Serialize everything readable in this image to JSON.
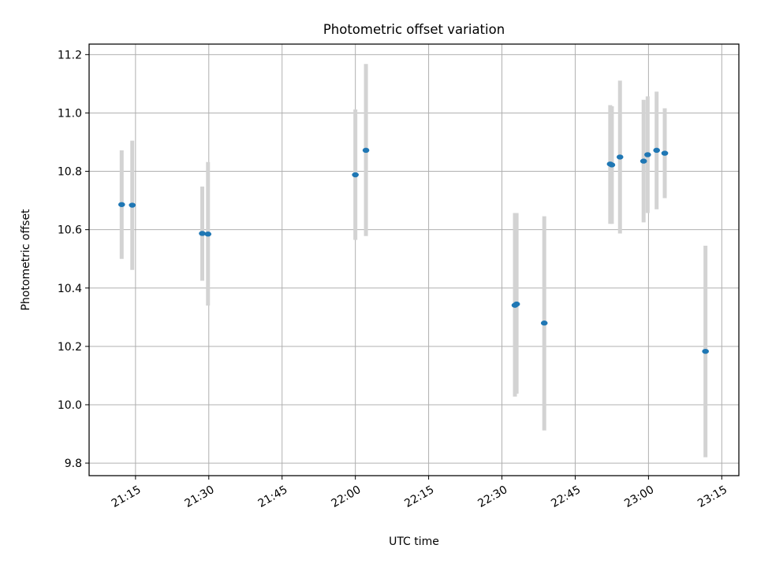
{
  "chart_data": {
    "type": "scatter",
    "title": "Photometric offset variation",
    "xlabel": "UTC time",
    "ylabel": "Photometric offset",
    "xlim": [
      "21:05:30",
      "23:18:30"
    ],
    "ylim": [
      9.757,
      11.236
    ],
    "x_ticks": [
      "21:15",
      "21:30",
      "21:45",
      "22:00",
      "22:15",
      "22:30",
      "22:45",
      "23:00",
      "23:15"
    ],
    "y_ticks": [
      "9.8",
      "10.0",
      "10.2",
      "10.4",
      "10.6",
      "10.8",
      "11.0",
      "11.2"
    ],
    "grid": true,
    "colors": {
      "point": "#1f77b4",
      "errorbar": "#d3d3d3",
      "grid": "#b0b0b0"
    },
    "series": [
      {
        "points": [
          {
            "x": "21:12:10",
            "y": 10.686,
            "ylow": 10.5,
            "yhigh": 10.872
          },
          {
            "x": "21:14:20",
            "y": 10.684,
            "ylow": 10.462,
            "yhigh": 10.905
          },
          {
            "x": "21:28:40",
            "y": 10.587,
            "ylow": 10.425,
            "yhigh": 10.748
          },
          {
            "x": "21:29:50",
            "y": 10.585,
            "ylow": 10.34,
            "yhigh": 10.832
          },
          {
            "x": "22:00:00",
            "y": 10.788,
            "ylow": 10.565,
            "yhigh": 11.012
          },
          {
            "x": "22:02:10",
            "y": 10.872,
            "ylow": 10.578,
            "yhigh": 11.168
          },
          {
            "x": "22:32:40",
            "y": 10.341,
            "ylow": 10.028,
            "yhigh": 10.657
          },
          {
            "x": "22:33:00",
            "y": 10.345,
            "ylow": 10.038,
            "yhigh": 10.657
          },
          {
            "x": "22:38:40",
            "y": 10.28,
            "ylow": 9.912,
            "yhigh": 10.646
          },
          {
            "x": "22:52:10",
            "y": 10.825,
            "ylow": 10.62,
            "yhigh": 11.027
          },
          {
            "x": "22:52:30",
            "y": 10.822,
            "ylow": 10.62,
            "yhigh": 11.023
          },
          {
            "x": "22:54:10",
            "y": 10.849,
            "ylow": 10.587,
            "yhigh": 11.111
          },
          {
            "x": "22:59:00",
            "y": 10.835,
            "ylow": 10.625,
            "yhigh": 11.045
          },
          {
            "x": "22:59:50",
            "y": 10.857,
            "ylow": 10.657,
            "yhigh": 11.057
          },
          {
            "x": "23:01:40",
            "y": 10.872,
            "ylow": 10.67,
            "yhigh": 11.073
          },
          {
            "x": "23:03:20",
            "y": 10.862,
            "ylow": 10.708,
            "yhigh": 11.016
          },
          {
            "x": "23:11:40",
            "y": 10.183,
            "ylow": 9.82,
            "yhigh": 10.545
          }
        ]
      }
    ]
  }
}
